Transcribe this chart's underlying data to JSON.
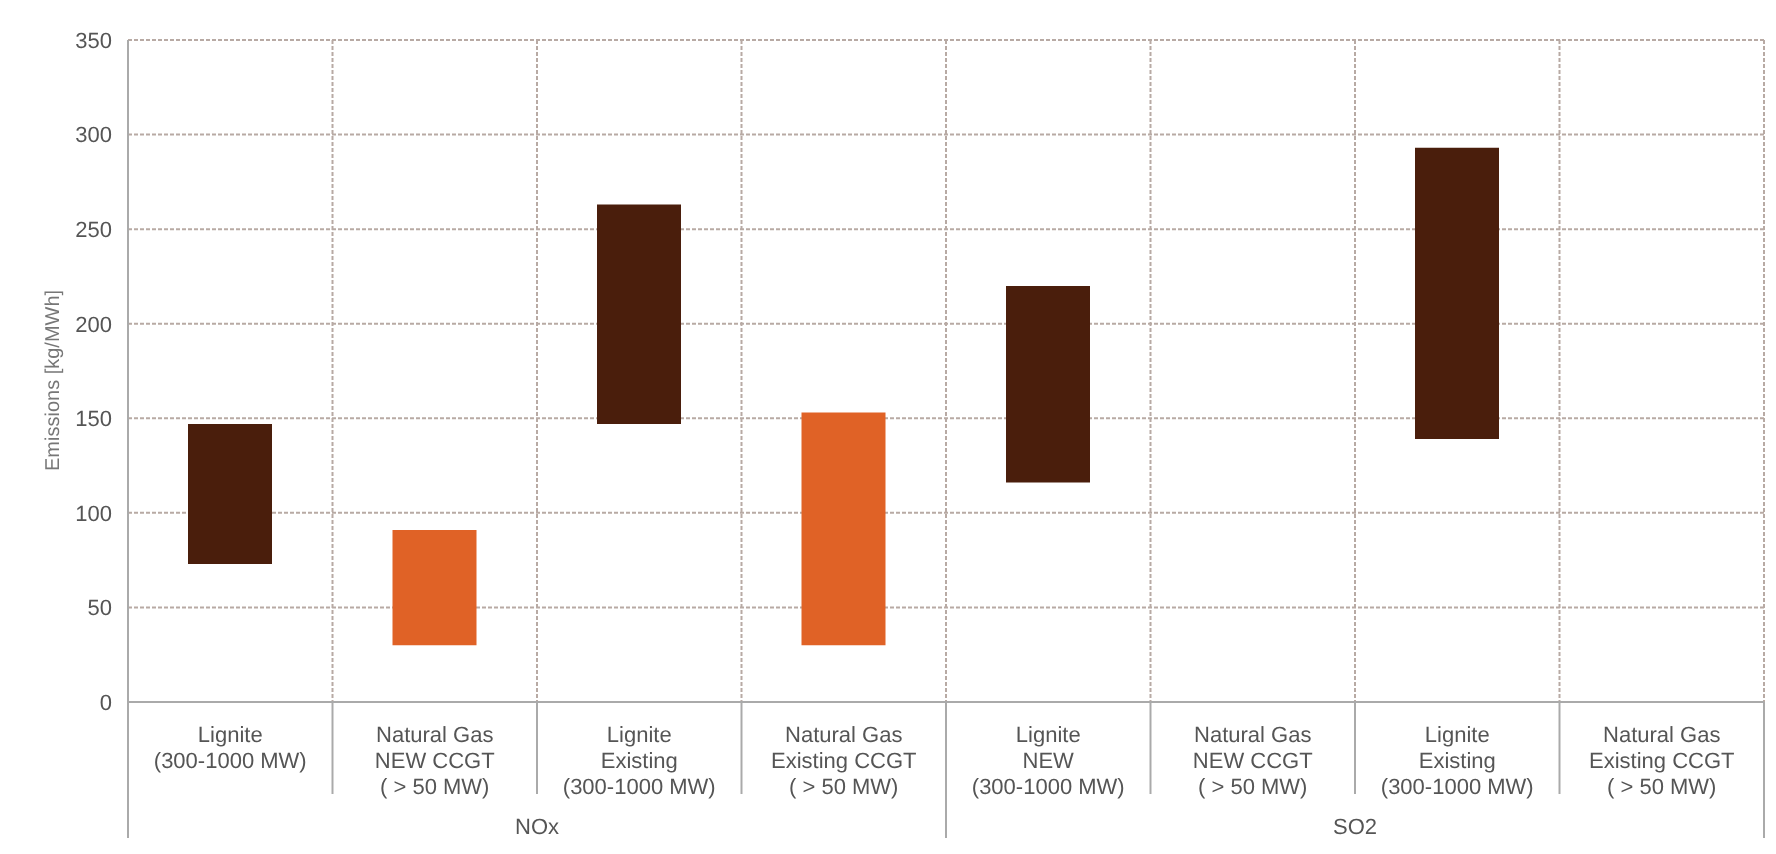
{
  "chart_data": {
    "type": "bar",
    "ylabel": "Emissions  [kg/MWh]",
    "categories": [
      "Lignite\n(300-1000 MW)",
      "Natural Gas\nNEW CCGT\n( > 50 MW)",
      "Lignite\nExisting\n(300-1000 MW)",
      "Natural Gas\nExisting CCGT\n( > 50 MW)",
      "Lignite\nNEW\n(300-1000 MW)",
      "Natural Gas\nNEW CCGT\n( > 50 MW)",
      "Lignite\nExisting\n(300-1000 MW)",
      "Natural Gas\nExisting CCGT\n( > 50 MW)"
    ],
    "base": [
      73,
      30,
      147,
      30,
      116,
      null,
      139,
      null
    ],
    "values": [
      74,
      61,
      116,
      123,
      104,
      null,
      154,
      null
    ],
    "colors": [
      "#4a1e0c",
      "#e06226",
      "#4a1e0c",
      "#e06226",
      "#4a1e0c",
      "#e06226",
      "#4a1e0c",
      "#e06226"
    ],
    "ylim": [
      0,
      350
    ],
    "yticks": [
      0,
      50,
      100,
      150,
      200,
      250,
      300,
      350
    ],
    "grid": true,
    "annotations": [
      "NOx",
      "SO2"
    ]
  }
}
